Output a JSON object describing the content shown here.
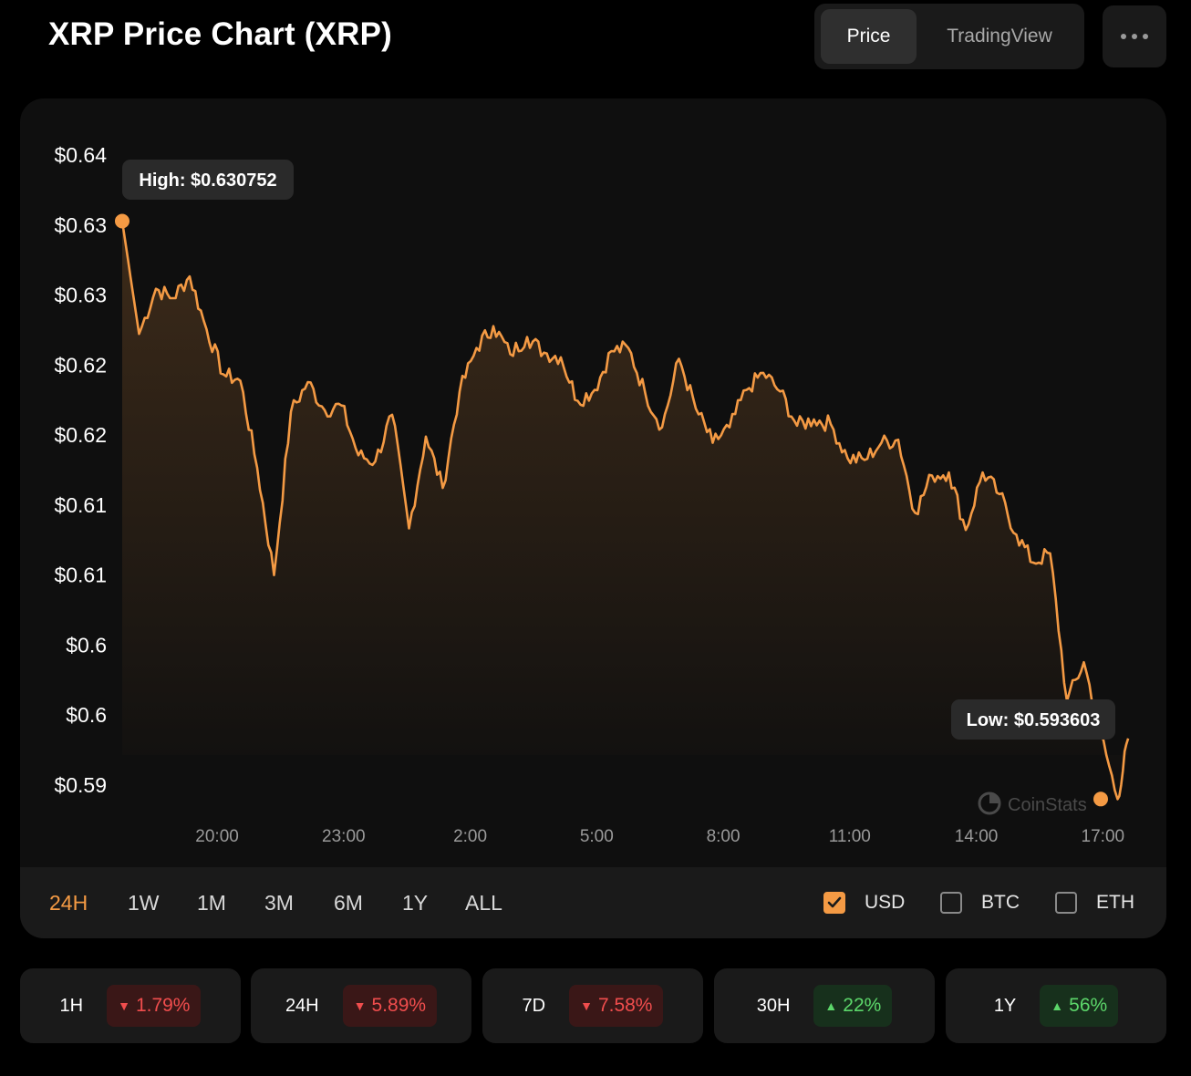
{
  "header": {
    "title": "XRP Price Chart (XRP)",
    "views": [
      "Price",
      "TradingView"
    ],
    "active_view": "Price",
    "more_icon": "more-horizontal-icon"
  },
  "chart_data": {
    "type": "area",
    "title": "",
    "xlabel": "",
    "ylabel": "",
    "x_tick_labels": [
      "20:00",
      "23:00",
      "2:00",
      "5:00",
      "8:00",
      "11:00",
      "14:00",
      "17:00"
    ],
    "y_tick_labels": [
      "$0.64",
      "$0.63",
      "$0.63",
      "$0.62",
      "$0.62",
      "$0.61",
      "$0.61",
      "$0.6",
      "$0.6",
      "$0.59"
    ],
    "y_tick_values": [
      0.635,
      0.6305,
      0.626,
      0.6215,
      0.617,
      0.6125,
      0.608,
      0.6035,
      0.599,
      0.5945
    ],
    "ylim": [
      0.5945,
      0.635
    ],
    "series_color": "#f49a44",
    "high": {
      "label": "High: $0.630752",
      "value": 0.630752
    },
    "low": {
      "label": "Low: $0.593603",
      "value": 0.593603
    },
    "watermark": "CoinStats",
    "series": [
      {
        "x": [
          17.75,
          18.15,
          18.55,
          18.95,
          19.35,
          19.75,
          20.15,
          20.55,
          20.95,
          21.35,
          21.75,
          22.15,
          22.55,
          22.95,
          23.35,
          23.75,
          24.15,
          24.55,
          24.95,
          25.35,
          25.75,
          26.15,
          26.55,
          26.95,
          27.35,
          27.75,
          28.15,
          28.55,
          28.95,
          29.35,
          29.75,
          30.15,
          30.55,
          30.95,
          31.35,
          31.75,
          32.15,
          32.55,
          32.95,
          33.35,
          33.75,
          34.15,
          34.55,
          34.95,
          35.35,
          35.75,
          36.15,
          36.55,
          36.95,
          37.35,
          37.75,
          38.15,
          38.55,
          38.95,
          39.35,
          39.75,
          40.15,
          40.55,
          40.95,
          41.35,
          41.6
        ],
        "y": [
          0.63075,
          0.6235,
          0.6264,
          0.6258,
          0.6272,
          0.6238,
          0.6209,
          0.6205,
          0.6149,
          0.608,
          0.6185,
          0.6204,
          0.6186,
          0.6189,
          0.6157,
          0.6153,
          0.6183,
          0.611,
          0.6169,
          0.6136,
          0.6198,
          0.6226,
          0.624,
          0.6222,
          0.6233,
          0.6223,
          0.622,
          0.6192,
          0.6199,
          0.6224,
          0.6226,
          0.6197,
          0.6175,
          0.6219,
          0.6187,
          0.6165,
          0.6175,
          0.6199,
          0.621,
          0.6198,
          0.6176,
          0.618,
          0.6177,
          0.6155,
          0.6154,
          0.6165,
          0.6167,
          0.612,
          0.6144,
          0.6146,
          0.6109,
          0.6146,
          0.6132,
          0.6106,
          0.6088,
          0.6094,
          0.5999,
          0.6024,
          0.5978,
          0.5936,
          0.5975
        ]
      }
    ]
  },
  "range_selector": {
    "items": [
      "24H",
      "1W",
      "1M",
      "3M",
      "6M",
      "1Y",
      "ALL"
    ],
    "active": "24H"
  },
  "currencies": [
    {
      "label": "USD",
      "checked": true
    },
    {
      "label": "BTC",
      "checked": false
    },
    {
      "label": "ETH",
      "checked": false
    }
  ],
  "stats": [
    {
      "label": "1H",
      "value": "1.79%",
      "direction": "down"
    },
    {
      "label": "24H",
      "value": "5.89%",
      "direction": "down"
    },
    {
      "label": "7D",
      "value": "7.58%",
      "direction": "down"
    },
    {
      "label": "30H",
      "value": "22%",
      "direction": "up"
    },
    {
      "label": "1Y",
      "value": "56%",
      "direction": "up"
    }
  ]
}
